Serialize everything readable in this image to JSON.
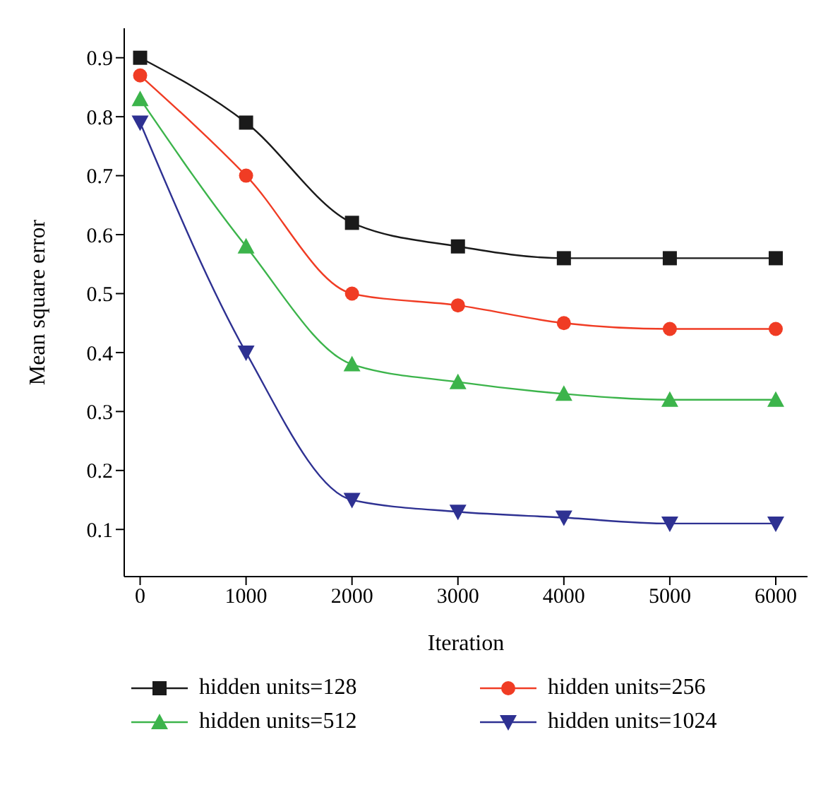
{
  "chart_data": {
    "type": "line",
    "xlabel": "Iteration",
    "ylabel": "Mean square error",
    "x": [
      0,
      1000,
      2000,
      3000,
      4000,
      5000,
      6000
    ],
    "xlim": [
      -150,
      6300
    ],
    "xticks": [
      0,
      1000,
      2000,
      3000,
      4000,
      5000,
      6000
    ],
    "ylim": [
      0.02,
      0.95
    ],
    "yticks": [
      0.1,
      0.2,
      0.3,
      0.4,
      0.5,
      0.6,
      0.7,
      0.8,
      0.9
    ],
    "grid": false,
    "legend": "bottom",
    "series": [
      {
        "name": "hidden units=128",
        "color": "#1a1a1a",
        "marker": "square",
        "values": [
          0.9,
          0.79,
          0.62,
          0.58,
          0.56,
          0.56,
          0.56
        ]
      },
      {
        "name": "hidden units=256",
        "color": "#f03c24",
        "marker": "circle",
        "values": [
          0.87,
          0.7,
          0.5,
          0.48,
          0.45,
          0.44,
          0.44
        ]
      },
      {
        "name": "hidden units=512",
        "color": "#3cb44b",
        "marker": "triangle",
        "values": [
          0.83,
          0.58,
          0.38,
          0.35,
          0.33,
          0.32,
          0.32
        ]
      },
      {
        "name": "hidden units=1024",
        "color": "#2e3192",
        "marker": "triangle-down",
        "values": [
          0.79,
          0.4,
          0.15,
          0.13,
          0.12,
          0.11,
          0.11
        ]
      }
    ]
  }
}
